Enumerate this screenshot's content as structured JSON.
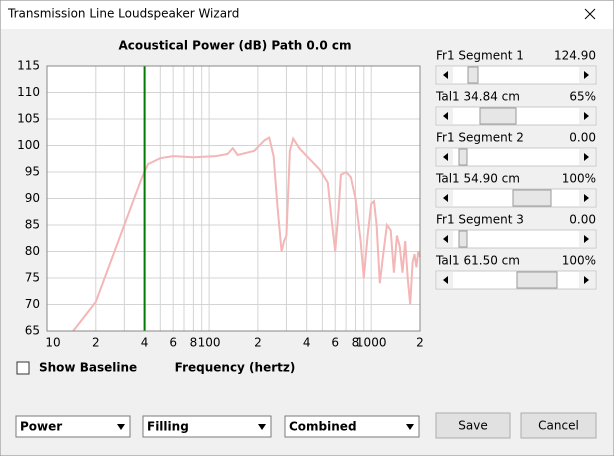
{
  "window": {
    "title": "Transmission Line Loudspeaker Wizard"
  },
  "chart_data": {
    "type": "line",
    "title": "Acoustical Power (dB)   Path 0.0 cm",
    "x_label": "Frequency (hertz)",
    "x_scale": "log",
    "grid": true,
    "xlim": [
      10,
      2000
    ],
    "ylim": [
      65,
      115
    ],
    "xticks": [
      10,
      {
        "value": 20,
        "label": "2"
      },
      {
        "value": 40,
        "label": "4"
      },
      {
        "value": 60,
        "label": "6"
      },
      {
        "value": 80,
        "label": "8"
      },
      100,
      {
        "value": 200,
        "label": "2"
      },
      {
        "value": 400,
        "label": "4"
      },
      {
        "value": 600,
        "label": "6"
      },
      {
        "value": 800,
        "label": "8"
      },
      1000,
      {
        "value": 2000,
        "label": "2"
      }
    ],
    "minor_xticks": [
      30,
      50,
      70,
      90,
      300,
      500,
      700,
      900
    ],
    "yticks": [
      65,
      70,
      75,
      80,
      85,
      90,
      95,
      100,
      105,
      110,
      115
    ],
    "cursor_x": 40,
    "cursor_color": "#007a00",
    "color": "#f4b6b6",
    "x": [
      14.5,
      20,
      30,
      38,
      42,
      50,
      60,
      80,
      110,
      130,
      140,
      150,
      190,
      220,
      235,
      250,
      265,
      280,
      290,
      300,
      315,
      330,
      360,
      400,
      480,
      540,
      570,
      600,
      630,
      650,
      700,
      750,
      800,
      860,
      900,
      950,
      1000,
      1040,
      1080,
      1130,
      1180,
      1250,
      1320,
      1380,
      1440,
      1500,
      1560,
      1620,
      1680,
      1740,
      1800,
      1850,
      1900,
      1950,
      2000
    ],
    "values": [
      65,
      70.5,
      85,
      93.5,
      96.5,
      97.6,
      98,
      97.8,
      98,
      98.4,
      99.5,
      98.2,
      99,
      101,
      101.5,
      98,
      88,
      80,
      82,
      83,
      99,
      101.3,
      99.5,
      98,
      95.5,
      93,
      86,
      80,
      88,
      94.5,
      95,
      94,
      90,
      82,
      75,
      83,
      89,
      89.5,
      85,
      74,
      79,
      85,
      84,
      76,
      83,
      81,
      76,
      82,
      75,
      70,
      78,
      79.5,
      77,
      80,
      79
    ]
  },
  "panel": {
    "rows": [
      {
        "label": "Fr1  Segment 1",
        "value": "124.90"
      },
      {
        "label": "Tal1  34.84 cm",
        "value": "65%"
      },
      {
        "label": "Fr1  Segment 2",
        "value": "0.00"
      },
      {
        "label": "Tal1  54.90 cm",
        "value": "100%"
      },
      {
        "label": "Fr1  Segment 3",
        "value": "0.00"
      },
      {
        "label": "Tal1  61.50 cm",
        "value": "100%"
      }
    ]
  },
  "show_baseline": {
    "label": "Show Baseline",
    "checked": false
  },
  "dropdowns": [
    "Power",
    "Filling",
    "Combined"
  ],
  "buttons": [
    "Save",
    "Cancel"
  ]
}
